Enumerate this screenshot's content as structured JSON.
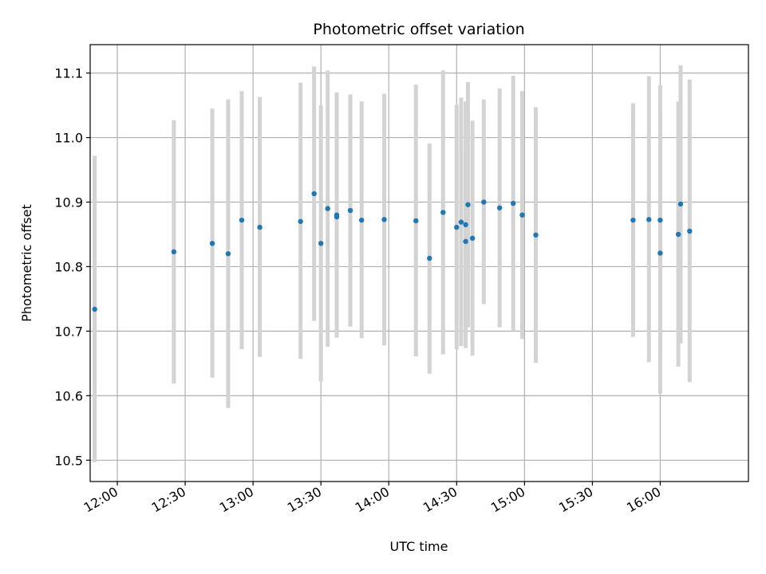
{
  "chart_data": {
    "type": "scatter",
    "title": "Photometric offset variation",
    "xlabel": "UTC time",
    "ylabel": "Photometric offset",
    "grid": true,
    "colors": {
      "point": "#1f77b4",
      "errorbar": "#d3d3d3",
      "grid": "#b0b0b0"
    },
    "x_ticks": [
      "12:00",
      "12:30",
      "13:00",
      "13:30",
      "14:00",
      "14:30",
      "15:00",
      "15:30",
      "16:00"
    ],
    "y_ticks": [
      "10.5",
      "10.6",
      "10.7",
      "10.8",
      "10.9",
      "11.0",
      "11.1"
    ],
    "xlim": [
      "11:48",
      "16:39"
    ],
    "ylim": [
      10.467,
      11.144
    ],
    "points": [
      {
        "t": "11:50",
        "y": 10.734,
        "lo": 10.497,
        "hi": 10.972
      },
      {
        "t": "12:25",
        "y": 10.823,
        "lo": 10.619,
        "hi": 11.027
      },
      {
        "t": "12:42",
        "y": 10.836,
        "lo": 10.628,
        "hi": 11.045
      },
      {
        "t": "12:49",
        "y": 10.82,
        "lo": 10.581,
        "hi": 11.059
      },
      {
        "t": "12:55",
        "y": 10.872,
        "lo": 10.672,
        "hi": 11.072
      },
      {
        "t": "13:03",
        "y": 10.861,
        "lo": 10.66,
        "hi": 11.063
      },
      {
        "t": "13:21",
        "y": 10.87,
        "lo": 10.657,
        "hi": 11.085
      },
      {
        "t": "13:27",
        "y": 10.913,
        "lo": 10.716,
        "hi": 11.11
      },
      {
        "t": "13:30",
        "y": 10.836,
        "lo": 10.622,
        "hi": 11.05
      },
      {
        "t": "13:33",
        "y": 10.89,
        "lo": 10.676,
        "hi": 11.104
      },
      {
        "t": "13:37",
        "y": 10.88,
        "lo": 10.69,
        "hi": 11.07
      },
      {
        "t": "13:37",
        "y": 10.877,
        "lo": 10.692,
        "hi": 11.068
      },
      {
        "t": "13:43",
        "y": 10.887,
        "lo": 10.707,
        "hi": 11.067
      },
      {
        "t": "13:48",
        "y": 10.872,
        "lo": 10.689,
        "hi": 11.056
      },
      {
        "t": "13:58",
        "y": 10.873,
        "lo": 10.678,
        "hi": 11.068
      },
      {
        "t": "14:12",
        "y": 10.871,
        "lo": 10.661,
        "hi": 11.082
      },
      {
        "t": "14:18",
        "y": 10.813,
        "lo": 10.634,
        "hi": 10.991
      },
      {
        "t": "14:24",
        "y": 10.884,
        "lo": 10.664,
        "hi": 11.104
      },
      {
        "t": "14:30",
        "y": 10.861,
        "lo": 10.672,
        "hi": 11.051
      },
      {
        "t": "14:32",
        "y": 10.869,
        "lo": 10.677,
        "hi": 11.062
      },
      {
        "t": "14:34",
        "y": 10.839,
        "lo": 10.704,
        "hi": 10.975
      },
      {
        "t": "14:34",
        "y": 10.865,
        "lo": 10.674,
        "hi": 11.056
      },
      {
        "t": "14:35",
        "y": 10.896,
        "lo": 10.706,
        "hi": 11.086
      },
      {
        "t": "14:37",
        "y": 10.844,
        "lo": 10.662,
        "hi": 11.026
      },
      {
        "t": "14:42",
        "y": 10.9,
        "lo": 10.742,
        "hi": 11.059
      },
      {
        "t": "14:49",
        "y": 10.891,
        "lo": 10.706,
        "hi": 11.076
      },
      {
        "t": "14:55",
        "y": 10.898,
        "lo": 10.7,
        "hi": 11.096
      },
      {
        "t": "14:59",
        "y": 10.88,
        "lo": 10.688,
        "hi": 11.072
      },
      {
        "t": "15:05",
        "y": 10.849,
        "lo": 10.651,
        "hi": 11.047
      },
      {
        "t": "15:48",
        "y": 10.872,
        "lo": 10.691,
        "hi": 11.053
      },
      {
        "t": "15:55",
        "y": 10.873,
        "lo": 10.652,
        "hi": 11.095
      },
      {
        "t": "16:00",
        "y": 10.872,
        "lo": 10.664,
        "hi": 11.081
      },
      {
        "t": "16:00",
        "y": 10.821,
        "lo": 10.603,
        "hi": 11.038
      },
      {
        "t": "16:08",
        "y": 10.85,
        "lo": 10.645,
        "hi": 11.056
      },
      {
        "t": "16:09",
        "y": 10.897,
        "lo": 10.681,
        "hi": 11.112
      },
      {
        "t": "16:13",
        "y": 10.855,
        "lo": 10.621,
        "hi": 11.09
      }
    ]
  }
}
